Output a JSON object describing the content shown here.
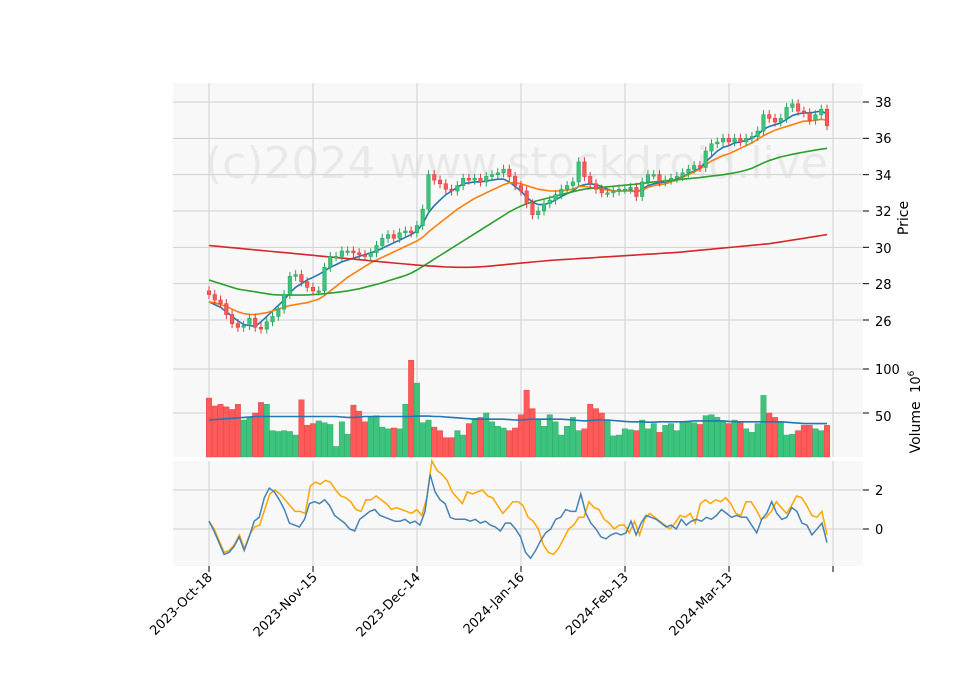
{
  "watermark": "(c)2024 www.stockdroid.live",
  "price_panel": {
    "ylabel": "Price",
    "ticks": [
      "38",
      "36",
      "34",
      "32",
      "30",
      "28",
      "26"
    ]
  },
  "volume_panel": {
    "ylabel": "Volume",
    "exponent": "6",
    "ticks": [
      "100",
      "50"
    ]
  },
  "osc_panel": {
    "ticks": [
      "2",
      "0"
    ]
  },
  "x_axis": {
    "ticks": [
      "2023-Oct-18",
      "2023-Nov-15",
      "2023-Dec-14",
      "2024-Jan-16",
      "2024-Feb-13",
      "2024-Mar-13"
    ]
  },
  "colors": {
    "up": "#26a65b",
    "up_fill": "#3cc47e",
    "down": "#e03a3a",
    "down_fill": "#ff5a5a",
    "sma_fast": "#1f77b4",
    "sma_mid": "#ff7f0e",
    "sma_slow": "#2ca02c",
    "sma_long": "#d62728",
    "vol_ma": "#1f77b4",
    "osc_a": "#ffa500",
    "osc_b": "#4682b4",
    "panel_bg": "#f8f8f8",
    "grid": "#d0d0d0"
  },
  "chart_data": [
    {
      "type": "candlestick",
      "x_range": [
        "2023-Oct-18",
        "2024-Mar-28"
      ],
      "ylim": [
        25,
        38.8
      ],
      "grid": true,
      "ohlc_close": [
        27.4,
        27.1,
        26.9,
        26.3,
        25.8,
        25.6,
        25.7,
        26.1,
        25.6,
        25.5,
        25.9,
        26.2,
        26.6,
        27.4,
        28.4,
        28.5,
        28.1,
        27.8,
        27.6,
        27.6,
        28.9,
        29.5,
        29.5,
        29.8,
        29.8,
        29.7,
        29.6,
        29.5,
        29.7,
        30.1,
        30.5,
        30.7,
        30.5,
        30.8,
        30.9,
        30.8,
        31.2,
        32.1,
        34.0,
        33.7,
        33.5,
        33.2,
        33.1,
        33.4,
        33.8,
        33.7,
        33.8,
        33.6,
        33.9,
        34.0,
        34.1,
        34.3,
        33.9,
        33.4,
        33.1,
        32.4,
        31.8,
        32.0,
        32.4,
        32.6,
        32.9,
        33.2,
        33.4,
        33.6,
        34.7,
        33.9,
        33.5,
        33.2,
        33.0,
        33.0,
        33.1,
        33.2,
        33.2,
        33.3,
        32.8,
        33.6,
        34.0,
        34.0,
        33.6,
        33.7,
        33.8,
        33.9,
        34.1,
        34.3,
        34.5,
        34.4,
        35.3,
        35.7,
        35.8,
        36.0,
        35.8,
        36.0,
        35.8,
        36.0,
        36.1,
        36.4,
        37.3,
        37.1,
        36.9,
        37.1,
        37.7,
        37.9,
        37.5,
        37.4,
        37.0,
        37.3,
        37.6,
        36.7
      ]
    },
    {
      "type": "line",
      "series": [
        {
          "values": [
            27.0,
            26.85,
            26.7,
            26.45,
            26.2,
            25.95,
            25.75,
            25.7,
            25.65,
            25.9,
            26.2,
            26.5,
            26.8,
            27.1,
            27.5,
            27.8,
            28.0,
            28.2,
            28.35,
            28.5,
            28.7,
            28.9,
            29.05,
            29.2,
            29.3,
            29.4,
            29.5,
            29.6,
            29.7,
            29.8,
            29.95,
            30.1,
            30.25,
            30.4,
            30.55,
            30.7,
            30.9,
            31.3,
            31.9,
            32.3,
            32.6,
            32.9,
            33.1,
            33.3,
            33.5,
            33.55,
            33.6,
            33.6,
            33.65,
            33.7,
            33.75,
            33.75,
            33.6,
            33.35,
            33.1,
            32.75,
            32.5,
            32.35,
            32.35,
            32.45,
            32.6,
            32.8,
            32.95,
            33.1,
            33.35,
            33.45,
            33.5,
            33.45,
            33.35,
            33.2,
            33.1,
            33.1,
            33.1,
            33.15,
            33.05,
            33.2,
            33.4,
            33.5,
            33.55,
            33.6,
            33.65,
            33.75,
            33.9,
            34.05,
            34.2,
            34.35,
            34.7,
            35.0,
            35.3,
            35.5,
            35.6,
            35.75,
            35.8,
            35.9,
            36.0,
            36.2,
            36.5,
            36.65,
            36.75,
            36.85,
            37.05,
            37.25,
            37.35,
            37.4,
            37.4,
            37.45,
            37.5,
            37.35
          ]
        },
        {
          "values": [
            27.0,
            26.95,
            26.85,
            26.75,
            26.6,
            26.45,
            26.35,
            26.3,
            26.3,
            26.35,
            26.4,
            26.5,
            26.6,
            26.7,
            26.8,
            26.85,
            26.9,
            26.95,
            27.05,
            27.15,
            27.35,
            27.6,
            27.85,
            28.1,
            28.35,
            28.55,
            28.75,
            28.95,
            29.15,
            29.3,
            29.45,
            29.6,
            29.75,
            29.9,
            30.05,
            30.2,
            30.35,
            30.55,
            30.85,
            31.1,
            31.35,
            31.6,
            31.85,
            32.1,
            32.3,
            32.5,
            32.7,
            32.85,
            33.0,
            33.15,
            33.3,
            33.45,
            33.55,
            33.55,
            33.5,
            33.4,
            33.3,
            33.2,
            33.15,
            33.1,
            33.1,
            33.1,
            33.15,
            33.2,
            33.35,
            33.35,
            33.3,
            33.25,
            33.2,
            33.15,
            33.1,
            33.1,
            33.1,
            33.1,
            33.05,
            33.15,
            33.3,
            33.4,
            33.45,
            33.5,
            33.6,
            33.7,
            33.85,
            34.0,
            34.15,
            34.3,
            34.55,
            34.75,
            34.9,
            35.05,
            35.15,
            35.3,
            35.45,
            35.6,
            35.75,
            35.95,
            36.15,
            36.3,
            36.45,
            36.55,
            36.65,
            36.75,
            36.85,
            36.95,
            36.95,
            37.0,
            37.05,
            37.0
          ]
        },
        {
          "values": [
            28.2,
            28.1,
            28.0,
            27.9,
            27.8,
            27.7,
            27.65,
            27.6,
            27.55,
            27.5,
            27.45,
            27.4,
            27.38,
            27.37,
            27.37,
            27.37,
            27.37,
            27.38,
            27.4,
            27.42,
            27.45,
            27.48,
            27.52,
            27.56,
            27.6,
            27.66,
            27.72,
            27.8,
            27.88,
            27.96,
            28.05,
            28.15,
            28.25,
            28.35,
            28.45,
            28.58,
            28.75,
            28.95,
            29.15,
            29.35,
            29.55,
            29.75,
            29.95,
            30.15,
            30.35,
            30.55,
            30.75,
            30.95,
            31.15,
            31.35,
            31.55,
            31.75,
            31.95,
            32.12,
            32.27,
            32.4,
            32.5,
            32.58,
            32.66,
            32.74,
            32.82,
            32.9,
            32.98,
            33.06,
            33.14,
            33.2,
            33.24,
            33.27,
            33.3,
            33.33,
            33.36,
            33.39,
            33.42,
            33.45,
            33.48,
            33.52,
            33.56,
            33.6,
            33.63,
            33.66,
            33.69,
            33.72,
            33.75,
            33.78,
            33.81,
            33.84,
            33.88,
            33.92,
            33.96,
            34.0,
            34.05,
            34.1,
            34.17,
            34.25,
            34.35,
            34.5,
            34.65,
            34.78,
            34.88,
            34.98,
            35.05,
            35.12,
            35.18,
            35.24,
            35.3,
            35.35,
            35.4,
            35.45
          ]
        },
        {
          "values": [
            30.1,
            30.07,
            30.04,
            30.01,
            29.98,
            29.95,
            29.92,
            29.89,
            29.86,
            29.83,
            29.8,
            29.77,
            29.74,
            29.71,
            29.68,
            29.65,
            29.62,
            29.59,
            29.56,
            29.53,
            29.5,
            29.47,
            29.44,
            29.41,
            29.38,
            29.35,
            29.32,
            29.29,
            29.26,
            29.23,
            29.2,
            29.17,
            29.14,
            29.11,
            29.08,
            29.05,
            29.02,
            29.0,
            28.98,
            28.96,
            28.94,
            28.92,
            28.91,
            28.9,
            28.9,
            28.9,
            28.91,
            28.93,
            28.95,
            28.98,
            29.01,
            29.04,
            29.07,
            29.1,
            29.13,
            29.16,
            29.19,
            29.22,
            29.25,
            29.28,
            29.3,
            29.32,
            29.34,
            29.36,
            29.38,
            29.4,
            29.42,
            29.44,
            29.46,
            29.48,
            29.5,
            29.52,
            29.54,
            29.56,
            29.58,
            29.6,
            29.62,
            29.64,
            29.66,
            29.68,
            29.7,
            29.72,
            29.75,
            29.78,
            29.81,
            29.84,
            29.87,
            29.9,
            29.93,
            29.96,
            29.99,
            30.02,
            30.05,
            30.08,
            30.11,
            30.14,
            30.17,
            30.2,
            30.25,
            30.3,
            30.35,
            30.4,
            30.45,
            30.5,
            30.55,
            30.6,
            30.65,
            30.7
          ]
        }
      ]
    },
    {
      "type": "bar",
      "ylim": [
        0,
        112
      ],
      "volume_values": [
        67,
        58,
        60,
        57,
        54,
        60,
        42,
        45,
        50,
        62,
        60,
        30,
        29,
        30,
        29,
        25,
        65,
        36,
        38,
        41,
        39,
        37,
        12,
        40,
        26,
        59,
        52,
        40,
        45,
        47,
        34,
        32,
        33,
        32,
        60,
        110,
        84,
        39,
        42,
        34,
        30,
        22,
        22,
        30,
        25,
        38,
        44,
        45,
        50,
        40,
        35,
        33,
        30,
        33,
        48,
        76,
        55,
        42,
        35,
        48,
        40,
        25,
        35,
        45,
        30,
        32,
        60,
        55,
        50,
        42,
        24,
        25,
        32,
        31,
        30,
        42,
        32,
        38,
        28,
        36,
        38,
        30,
        40,
        40,
        39,
        37,
        47,
        48,
        45,
        40,
        38,
        42,
        40,
        32,
        28,
        38,
        70,
        50,
        45,
        40,
        25,
        26,
        30,
        36,
        36,
        32,
        30,
        36
      ],
      "ma_values": [
        42,
        42.5,
        43,
        43.5,
        44,
        44.5,
        45,
        45.5,
        46,
        46,
        46,
        46,
        46,
        46,
        46,
        46,
        46,
        46,
        46,
        46,
        46,
        46,
        46,
        45.5,
        45,
        45,
        45.5,
        46,
        46,
        46,
        46,
        46,
        46,
        46,
        46,
        46,
        46.5,
        46.5,
        46.5,
        46,
        46,
        45.5,
        45,
        44.5,
        44,
        43.5,
        43,
        43,
        43,
        43,
        43,
        43,
        42.5,
        42,
        42,
        42.5,
        43,
        43,
        43,
        43,
        43,
        43,
        42.5,
        42,
        41.5,
        41,
        41.5,
        42,
        42,
        42,
        41.5,
        41,
        40.5,
        40,
        40,
        40,
        39.5,
        39.5,
        40,
        40,
        40,
        40,
        40,
        40.5,
        41,
        41,
        41,
        41,
        41,
        41,
        40.5,
        40,
        40,
        40,
        40,
        40,
        40,
        40,
        40,
        40,
        39.5,
        39,
        38.5,
        38,
        38,
        38,
        38,
        38
      ]
    },
    {
      "type": "line",
      "ylim": [
        -1.7,
        3.6
      ],
      "series": [
        {
          "values": [
            0.4,
            0.0,
            -0.6,
            -1.2,
            -1.1,
            -0.8,
            -0.3,
            -1.0,
            -0.3,
            0.1,
            0.2,
            1.0,
            1.8,
            2.0,
            1.8,
            1.5,
            1.2,
            0.9,
            0.9,
            0.8,
            2.2,
            2.4,
            2.3,
            2.5,
            2.4,
            2.0,
            1.7,
            1.6,
            1.4,
            1.0,
            0.9,
            1.5,
            1.5,
            1.7,
            1.5,
            1.3,
            1.0,
            1.1,
            1.0,
            0.9,
            0.8,
            1.0,
            0.7,
            1.6,
            3.5,
            3.0,
            2.8,
            2.5,
            1.9,
            1.6,
            1.3,
            1.9,
            1.8,
            1.9,
            2.0,
            1.7,
            1.6,
            1.2,
            0.8,
            1.1,
            1.4,
            1.4,
            1.2,
            0.6,
            0.4,
            0.0,
            -0.8,
            -1.2,
            -1.3,
            -1.0,
            -0.5,
            0.0,
            0.2,
            0.6,
            0.6,
            1.4,
            1.1,
            1.0,
            0.5,
            0.3,
            0.0,
            0.2,
            0.2,
            -0.2,
            0.4,
            -0.3,
            0.5,
            0.8,
            0.6,
            0.4,
            0.2,
            0.0,
            0.3,
            0.7,
            0.6,
            0.8,
            0.3,
            1.3,
            1.5,
            1.3,
            1.5,
            1.4,
            1.6,
            1.3,
            0.8,
            0.7,
            1.4,
            1.4,
            1.0,
            0.5,
            0.6,
            0.9,
            1.4,
            1.1,
            0.8,
            1.2,
            1.7,
            1.6,
            1.2,
            0.7,
            0.6,
            0.9,
            -0.3
          ]
        },
        {
          "values": [
            0.4,
            -0.1,
            -0.7,
            -1.3,
            -1.2,
            -0.9,
            -0.4,
            -1.1,
            -0.4,
            0.4,
            0.6,
            1.6,
            2.1,
            1.9,
            1.5,
            1.0,
            0.3,
            0.2,
            0.1,
            0.5,
            1.3,
            1.4,
            1.3,
            1.5,
            1.2,
            0.7,
            0.5,
            0.3,
            0.0,
            -0.1,
            0.5,
            0.7,
            0.9,
            1.0,
            0.7,
            0.6,
            0.5,
            0.4,
            0.4,
            0.5,
            0.3,
            0.4,
            0.2,
            0.9,
            2.8,
            1.9,
            1.5,
            1.3,
            0.6,
            0.5,
            0.5,
            0.5,
            0.4,
            0.5,
            0.3,
            0.4,
            0.2,
            0.1,
            -0.1,
            0.3,
            0.3,
            0.0,
            -0.4,
            -1.2,
            -1.5,
            -1.1,
            -0.6,
            -0.2,
            0.0,
            0.5,
            0.6,
            1.0,
            0.9,
            0.9,
            1.8,
            0.8,
            0.3,
            0.0,
            -0.4,
            -0.5,
            -0.3,
            -0.2,
            -0.3,
            -0.2,
            0.4,
            -0.3,
            0.3,
            0.7,
            0.6,
            0.5,
            0.3,
            0.1,
            0.2,
            0.0,
            0.5,
            0.2,
            0.4,
            0.5,
            0.4,
            0.6,
            0.5,
            0.7,
            1.0,
            0.8,
            0.6,
            0.7,
            0.6,
            0.6,
            0.2,
            -0.2,
            0.5,
            0.8,
            1.4,
            0.8,
            0.5,
            0.6,
            1.1,
            0.9,
            0.3,
            0.2,
            -0.3,
            0.0,
            0.3,
            -0.7
          ]
        }
      ]
    }
  ]
}
